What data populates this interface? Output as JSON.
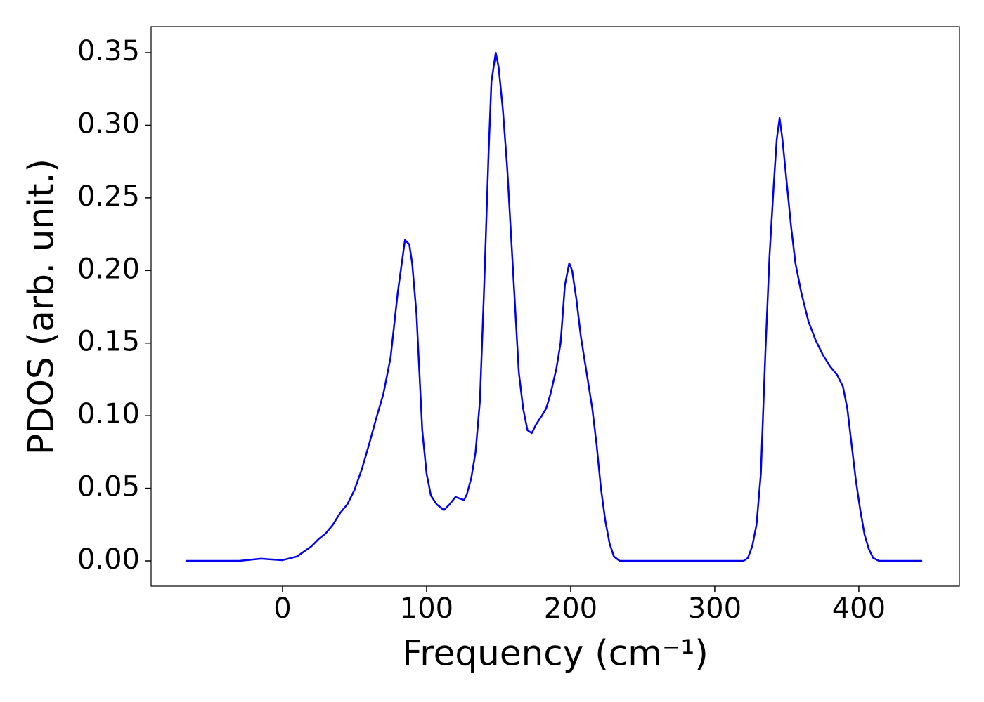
{
  "chart_data": {
    "type": "line",
    "xlabel": "Frequency (cm⁻¹)",
    "ylabel": "PDOS (arb. unit.)",
    "xlim": [
      -91.2,
      469.8
    ],
    "ylim": [
      -0.0174,
      0.3679
    ],
    "xticks": [
      0,
      100,
      200,
      300,
      400
    ],
    "yticks": [
      {
        "value": 0,
        "label": "0.00"
      },
      {
        "value": 0.05,
        "label": "0.05"
      },
      {
        "value": 0.1,
        "label": "0.10"
      },
      {
        "value": 0.15,
        "label": "0.15"
      },
      {
        "value": 0.2,
        "label": "0.20"
      },
      {
        "value": 0.25,
        "label": "0.25"
      },
      {
        "value": 0.3,
        "label": "0.30"
      },
      {
        "value": 0.35,
        "label": "0.35"
      }
    ],
    "grid": false,
    "x": [
      -67,
      -30,
      -15,
      0,
      10,
      20,
      25,
      30,
      35,
      40,
      45,
      50,
      55,
      60,
      65,
      70,
      75,
      80,
      85,
      88,
      90,
      93,
      95,
      97,
      100,
      103,
      107,
      112,
      116,
      120,
      123,
      126,
      128,
      131,
      134,
      137,
      140,
      143,
      145,
      148,
      150,
      153,
      156,
      160,
      164,
      167,
      170,
      173,
      176,
      180,
      183,
      186,
      190,
      193,
      196,
      199,
      201,
      204,
      207,
      211,
      215,
      218,
      221,
      224,
      227,
      230,
      234,
      320,
      323,
      326,
      329,
      332,
      335,
      338,
      341,
      343,
      345,
      347,
      350,
      353,
      356,
      360,
      365,
      370,
      375,
      380,
      385,
      389,
      392,
      395,
      398,
      401,
      404,
      407,
      410,
      414,
      444
    ],
    "series": [
      {
        "name": "PDOS",
        "color": "#0000ee",
        "values": [
          0,
          0,
          0.0015,
          0.0005,
          0.003,
          0.01,
          0.015,
          0.019,
          0.025,
          0.033,
          0.039,
          0.049,
          0.063,
          0.08,
          0.098,
          0.115,
          0.14,
          0.185,
          0.221,
          0.218,
          0.205,
          0.17,
          0.13,
          0.09,
          0.06,
          0.045,
          0.039,
          0.035,
          0.039,
          0.044,
          0.043,
          0.042,
          0.046,
          0.057,
          0.075,
          0.11,
          0.19,
          0.28,
          0.33,
          0.35,
          0.34,
          0.31,
          0.27,
          0.2,
          0.13,
          0.105,
          0.09,
          0.088,
          0.094,
          0.1,
          0.105,
          0.115,
          0.132,
          0.15,
          0.19,
          0.205,
          0.2,
          0.18,
          0.155,
          0.13,
          0.105,
          0.08,
          0.05,
          0.028,
          0.012,
          0.003,
          0,
          0,
          0.002,
          0.01,
          0.025,
          0.06,
          0.14,
          0.21,
          0.26,
          0.29,
          0.305,
          0.29,
          0.26,
          0.23,
          0.205,
          0.185,
          0.165,
          0.152,
          0.142,
          0.134,
          0.128,
          0.12,
          0.105,
          0.08,
          0.055,
          0.035,
          0.018,
          0.008,
          0.002,
          0,
          0
        ]
      }
    ]
  }
}
